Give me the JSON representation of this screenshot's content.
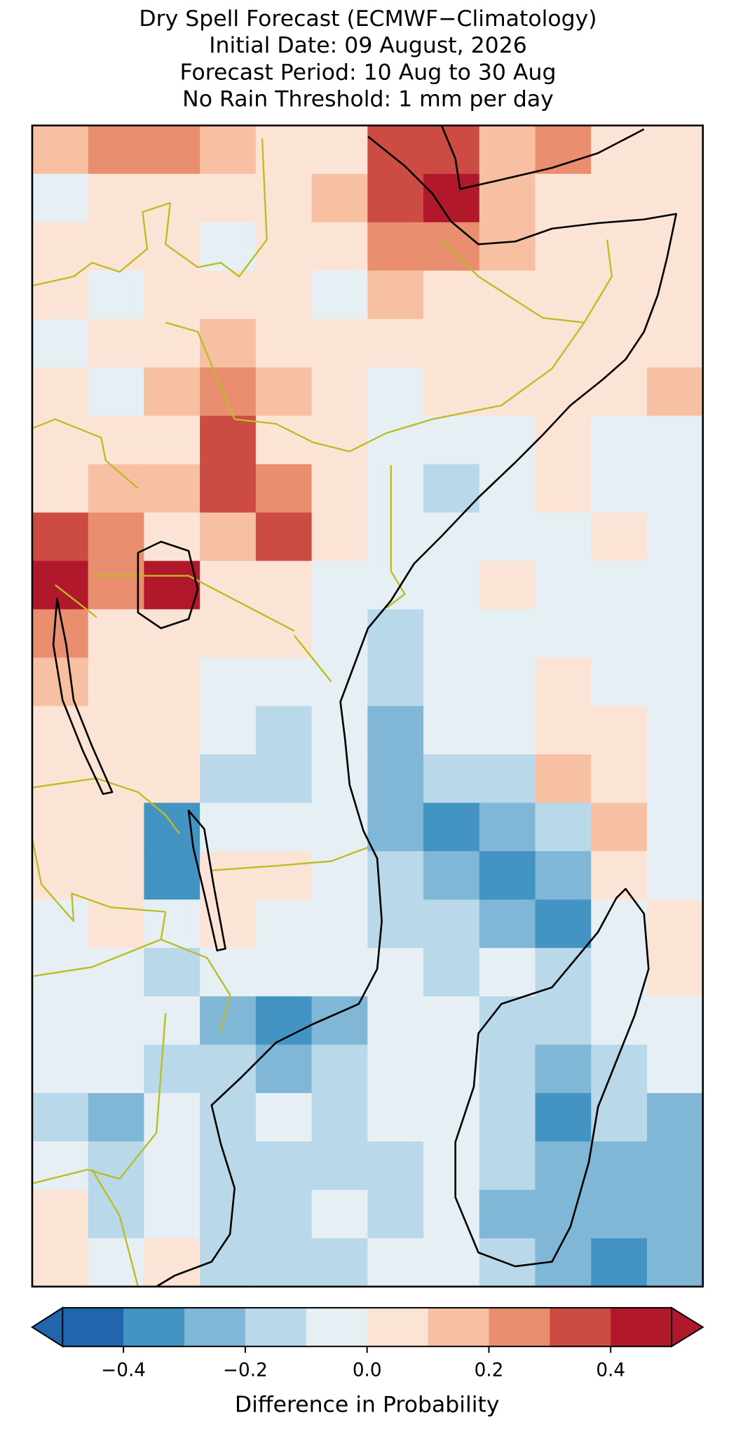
{
  "chart_data": {
    "type": "heatmap",
    "title": [
      "Dry Spell Forecast (ECMWF−Climatology)",
      "Initial Date: 09 August, 2026",
      "Forecast Period: 10 Aug to 30 Aug",
      "No Rain Threshold: 1 mm per day"
    ],
    "values": [
      [
        0.15,
        0.2,
        0.2,
        0.1,
        0.05,
        0.05,
        0.35,
        0.35,
        0.15,
        0.2,
        0.05,
        0.05
      ],
      [
        -0.05,
        0.05,
        0.05,
        0.05,
        0.05,
        0.1,
        0.35,
        0.45,
        0.15,
        0.05,
        0.05,
        0.05
      ],
      [
        0.05,
        0.05,
        0.05,
        -0.05,
        0.05,
        0.05,
        0.25,
        0.25,
        0.15,
        0.05,
        0.05,
        0.05
      ],
      [
        0.05,
        -0.05,
        0.05,
        0.05,
        0.05,
        -0.05,
        0.15,
        0.05,
        0.05,
        0.05,
        0.05,
        0.05
      ],
      [
        -0.05,
        0.05,
        0.05,
        0.15,
        0.05,
        0.05,
        0.05,
        0.05,
        0.05,
        0.05,
        0.05,
        0.05
      ],
      [
        0.05,
        -0.05,
        0.15,
        0.25,
        0.15,
        0.05,
        -0.05,
        0.05,
        0.05,
        0.05,
        0.05,
        0.15
      ],
      [
        0.05,
        0.05,
        0.05,
        0.35,
        0.05,
        0.05,
        -0.05,
        -0.05,
        -0.05,
        0.05,
        -0.05,
        -0.05
      ],
      [
        0.05,
        0.15,
        0.15,
        0.35,
        0.25,
        0.05,
        -0.05,
        -0.15,
        -0.05,
        0.05,
        -0.05,
        -0.05
      ],
      [
        0.35,
        0.25,
        0.05,
        0.15,
        0.35,
        0.05,
        -0.05,
        -0.05,
        -0.05,
        -0.05,
        0.05,
        -0.05
      ],
      [
        0.45,
        0.25,
        0.45,
        0.05,
        0.05,
        -0.05,
        -0.05,
        -0.05,
        0.05,
        -0.05,
        -0.05,
        -0.05
      ],
      [
        0.25,
        0.05,
        0.05,
        0.05,
        0.05,
        -0.05,
        -0.15,
        -0.05,
        -0.05,
        -0.05,
        -0.05,
        -0.05
      ],
      [
        0.15,
        0.05,
        0.05,
        -0.05,
        -0.05,
        -0.05,
        -0.15,
        -0.05,
        -0.05,
        0.05,
        -0.05,
        -0.05
      ],
      [
        0.05,
        0.05,
        0.05,
        -0.05,
        -0.15,
        -0.05,
        -0.25,
        -0.05,
        -0.05,
        0.05,
        0.05,
        -0.05
      ],
      [
        0.05,
        0.05,
        0.05,
        -0.15,
        -0.15,
        -0.05,
        -0.25,
        -0.15,
        -0.15,
        0.15,
        0.05,
        -0.05
      ],
      [
        0.05,
        0.05,
        -0.35,
        -0.05,
        -0.05,
        -0.05,
        -0.25,
        -0.35,
        -0.25,
        -0.15,
        0.15,
        -0.05
      ],
      [
        0.05,
        0.05,
        -0.35,
        0.05,
        0.05,
        -0.05,
        -0.15,
        -0.25,
        -0.35,
        -0.25,
        0.05,
        -0.05
      ],
      [
        -0.05,
        0.05,
        -0.05,
        0.05,
        -0.05,
        -0.05,
        -0.15,
        -0.15,
        -0.25,
        -0.35,
        -0.05,
        0.05
      ],
      [
        -0.05,
        -0.05,
        -0.15,
        -0.05,
        -0.05,
        -0.05,
        -0.05,
        -0.15,
        -0.05,
        -0.15,
        -0.05,
        0.05
      ],
      [
        -0.05,
        -0.05,
        -0.05,
        -0.25,
        -0.35,
        -0.25,
        -0.05,
        -0.05,
        -0.15,
        -0.15,
        -0.05,
        -0.05
      ],
      [
        -0.05,
        -0.05,
        -0.15,
        -0.15,
        -0.25,
        -0.15,
        -0.05,
        -0.05,
        -0.15,
        -0.25,
        -0.15,
        -0.05
      ],
      [
        -0.15,
        -0.25,
        -0.05,
        -0.15,
        -0.05,
        -0.15,
        -0.05,
        -0.05,
        -0.15,
        -0.35,
        -0.15,
        -0.25
      ],
      [
        -0.05,
        -0.15,
        -0.05,
        -0.15,
        -0.15,
        -0.15,
        -0.15,
        -0.05,
        -0.15,
        -0.25,
        -0.25,
        -0.25
      ],
      [
        0.05,
        -0.15,
        -0.05,
        -0.15,
        -0.15,
        -0.05,
        -0.15,
        -0.05,
        -0.25,
        -0.25,
        -0.25,
        -0.25
      ],
      [
        0.05,
        -0.05,
        0.05,
        -0.15,
        -0.15,
        -0.15,
        -0.05,
        -0.05,
        -0.15,
        -0.25,
        -0.35,
        -0.25
      ]
    ],
    "colorbar": {
      "label": "Difference in Probability",
      "lim": [
        -0.5,
        0.5
      ],
      "boundaries": [
        -0.5,
        -0.4,
        -0.3,
        -0.2,
        -0.1,
        0,
        0.1,
        0.2,
        0.3,
        0.4,
        0.5
      ],
      "colors": [
        "#2166ac",
        "#4393c3",
        "#80b6d6",
        "#b9d8e9",
        "#e6eff4",
        "#fbe4d6",
        "#f8c0a3",
        "#ea8e70",
        "#cc4c44",
        "#b2182b"
      ],
      "extend": "both",
      "ticks": [
        {
          "value": -0.4,
          "label": "−0.4"
        },
        {
          "value": -0.2,
          "label": "−0.2"
        },
        {
          "value": 0,
          "label": "0.0"
        },
        0.2,
        0.4
      ]
    }
  }
}
